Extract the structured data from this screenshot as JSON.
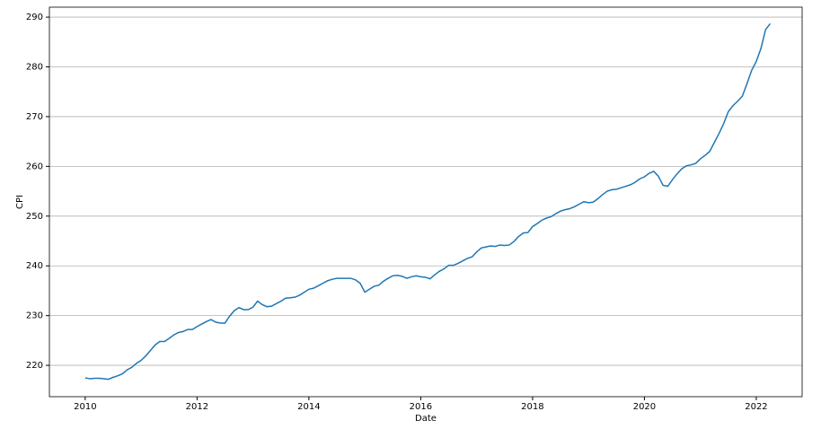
{
  "chart_data": {
    "type": "line",
    "xlabel": "Date",
    "ylabel": "CPI",
    "x": [
      2010.0,
      2010.083,
      2010.167,
      2010.25,
      2010.333,
      2010.417,
      2010.5,
      2010.583,
      2010.667,
      2010.75,
      2010.833,
      2010.917,
      2011.0,
      2011.083,
      2011.167,
      2011.25,
      2011.333,
      2011.417,
      2011.5,
      2011.583,
      2011.667,
      2011.75,
      2011.833,
      2011.917,
      2012.0,
      2012.083,
      2012.167,
      2012.25,
      2012.333,
      2012.417,
      2012.5,
      2012.583,
      2012.667,
      2012.75,
      2012.833,
      2012.917,
      2013.0,
      2013.083,
      2013.167,
      2013.25,
      2013.333,
      2013.417,
      2013.5,
      2013.583,
      2013.667,
      2013.75,
      2013.833,
      2013.917,
      2014.0,
      2014.083,
      2014.167,
      2014.25,
      2014.333,
      2014.417,
      2014.5,
      2014.583,
      2014.667,
      2014.75,
      2014.833,
      2014.917,
      2015.0,
      2015.083,
      2015.167,
      2015.25,
      2015.333,
      2015.417,
      2015.5,
      2015.583,
      2015.667,
      2015.75,
      2015.833,
      2015.917,
      2016.0,
      2016.083,
      2016.167,
      2016.25,
      2016.333,
      2016.417,
      2016.5,
      2016.583,
      2016.667,
      2016.75,
      2016.833,
      2016.917,
      2017.0,
      2017.083,
      2017.167,
      2017.25,
      2017.333,
      2017.417,
      2017.5,
      2017.583,
      2017.667,
      2017.75,
      2017.833,
      2017.917,
      2018.0,
      2018.083,
      2018.167,
      2018.25,
      2018.333,
      2018.417,
      2018.5,
      2018.583,
      2018.667,
      2018.75,
      2018.833,
      2018.917,
      2019.0,
      2019.083,
      2019.167,
      2019.25,
      2019.333,
      2019.417,
      2019.5,
      2019.583,
      2019.667,
      2019.75,
      2019.833,
      2019.917,
      2020.0,
      2020.083,
      2020.167,
      2020.25,
      2020.333,
      2020.417,
      2020.5,
      2020.583,
      2020.667,
      2020.75,
      2020.833,
      2020.917,
      2021.0,
      2021.083,
      2021.167,
      2021.25,
      2021.333,
      2021.417,
      2021.5,
      2021.583,
      2021.667,
      2021.75,
      2021.833,
      2021.917,
      2022.0,
      2022.083,
      2022.167,
      2022.25
    ],
    "series": [
      {
        "name": "CPI",
        "color": "#1f77b4",
        "values": [
          217.5,
          217.3,
          217.4,
          217.4,
          217.3,
          217.2,
          217.6,
          217.9,
          218.3,
          219.1,
          219.6,
          220.4,
          221.0,
          221.9,
          223.0,
          224.1,
          224.8,
          224.8,
          225.4,
          226.1,
          226.6,
          226.8,
          227.2,
          227.2,
          227.8,
          228.3,
          228.8,
          229.2,
          228.7,
          228.5,
          228.5,
          229.9,
          231.0,
          231.6,
          231.2,
          231.2,
          231.7,
          232.9,
          232.2,
          231.8,
          231.9,
          232.4,
          232.9,
          233.5,
          233.6,
          233.7,
          234.1,
          234.7,
          235.3,
          235.5,
          236.0,
          236.5,
          237.0,
          237.3,
          237.5,
          237.5,
          237.5,
          237.5,
          237.2,
          236.5,
          234.7,
          235.3,
          235.9,
          236.1,
          236.9,
          237.5,
          238.0,
          238.1,
          237.9,
          237.5,
          237.8,
          238.0,
          237.8,
          237.7,
          237.4,
          238.2,
          238.9,
          239.4,
          240.1,
          240.1,
          240.5,
          241.0,
          241.5,
          241.8,
          242.8,
          243.6,
          243.8,
          244.0,
          243.9,
          244.2,
          244.1,
          244.2,
          244.9,
          245.9,
          246.6,
          246.7,
          247.9,
          248.5,
          249.2,
          249.6,
          249.9,
          250.5,
          251.0,
          251.3,
          251.5,
          251.9,
          252.4,
          252.9,
          252.7,
          252.8,
          253.5,
          254.3,
          255.0,
          255.3,
          255.4,
          255.7,
          256.0,
          256.3,
          256.8,
          257.5,
          257.9,
          258.6,
          259.0,
          258.0,
          256.2,
          256.0,
          257.3,
          258.5,
          259.5,
          260.1,
          260.3,
          260.6,
          261.5,
          262.2,
          263.0,
          264.8,
          266.6,
          268.6,
          271.0,
          272.2,
          273.1,
          274.1,
          276.6,
          279.3,
          281.1,
          283.7,
          287.5,
          288.7
        ]
      }
    ],
    "xlim": [
      2009.36,
      2022.82
    ],
    "xticks": [
      2010,
      2012,
      2014,
      2016,
      2018,
      2020,
      2022
    ],
    "ylim": [
      213.7,
      292
    ],
    "yticks": [
      220,
      230,
      240,
      250,
      260,
      270,
      280,
      290
    ],
    "grid": "y"
  }
}
